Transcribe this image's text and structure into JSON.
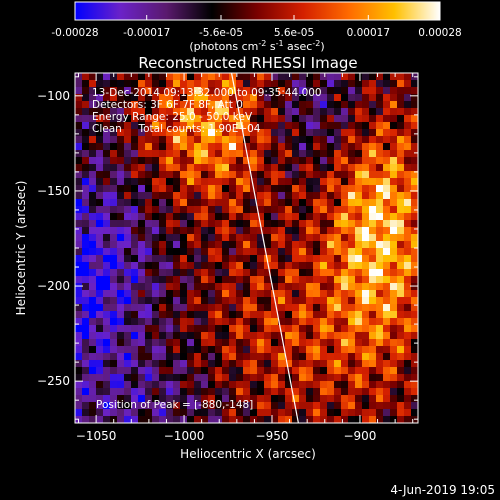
{
  "colorbar": {
    "ticks": [
      "-0.00028",
      "-0.00017",
      "-5.6e-05",
      "5.6e-05",
      "0.00017",
      "0.00028"
    ],
    "tick_values": [
      -0.00028,
      -0.00017,
      -5.6e-05,
      5.6e-05,
      0.00017,
      0.00028
    ],
    "range": [
      -0.00028,
      0.00028
    ],
    "unit_main": "(photons cm",
    "unit_exp1": "-2",
    "unit_s": " s",
    "unit_exp2": "-1",
    "unit_asec": " asec",
    "unit_exp3": "-2",
    "unit_close": ")",
    "colors": [
      "#0000ff",
      "#6b22c8",
      "#5a1a6e",
      "#000000",
      "#7a0000",
      "#d42000",
      "#ff6a00",
      "#ffc000",
      "#ffffff"
    ]
  },
  "plot": {
    "title": "Reconstructed RHESSI Image",
    "xlabel": "Heliocentric X (arcsec)",
    "ylabel": "Heliocentric Y (arcsec)",
    "info_lines": [
      "13-Dec-2014 09:13:32.000 to 09:35:44.000",
      "Detectors: 3F 6F 7F 8F, Att 0",
      "Energy Range: 25.0 - 50.0 keV",
      "Clean     Total counts: 1.90E+04"
    ],
    "peak_text": "Position of Peak = [-880,-148]",
    "footer_date": "4-Jun-2019 19:05"
  },
  "chart_data": {
    "type": "heatmap",
    "title": "Reconstructed RHESSI Image",
    "xlabel": "Heliocentric X (arcsec)",
    "ylabel": "Heliocentric Y (arcsec)",
    "xlim": [
      -1062,
      -867
    ],
    "ylim": [
      -272,
      -88
    ],
    "x_ticks": [
      -1050,
      -1000,
      -950,
      -900
    ],
    "y_ticks": [
      -100,
      -150,
      -200,
      -250
    ],
    "x_tick_labels": [
      "−1050",
      "−1000",
      "−950",
      "−900"
    ],
    "y_tick_labels": [
      "−100",
      "−150",
      "−200",
      "−250"
    ],
    "value_range": [
      -0.00028,
      0.00028
    ],
    "peak_position": [
      -880,
      -148
    ],
    "limb_line": [
      [
        -973,
        -88
      ],
      [
        -935,
        -272
      ]
    ]
  }
}
